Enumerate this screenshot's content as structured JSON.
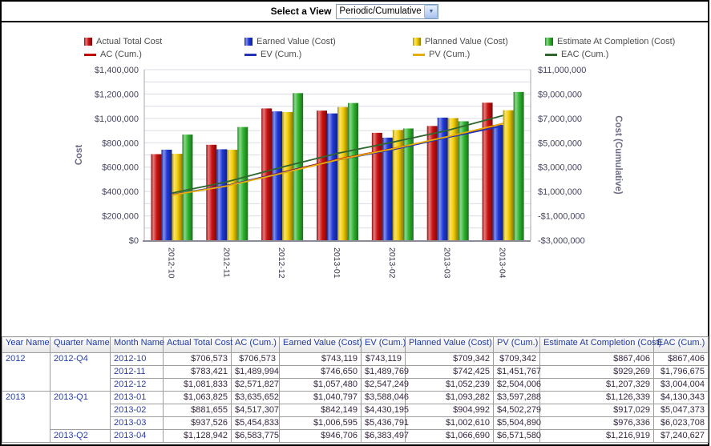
{
  "view_selector": {
    "label": "Select a View",
    "value": "Periodic/Cumulative"
  },
  "chart_data": {
    "type": "bar",
    "subtype": "grouped-bars-with-cumulative-lines",
    "categories": [
      "2012-10",
      "2012-11",
      "2012-12",
      "2013-01",
      "2013-02",
      "2013-03",
      "2013-04"
    ],
    "bar_series": [
      {
        "name": "Actual Total Cost",
        "color": "#cc1111",
        "values": [
          706573,
          783421,
          1081833,
          1063825,
          881655,
          937526,
          1128942
        ]
      },
      {
        "name": "Earned Value (Cost)",
        "color": "#2038d8",
        "values": [
          743119,
          746650,
          1057480,
          1040797,
          842149,
          1006595,
          946706
        ]
      },
      {
        "name": "Planned Value (Cost)",
        "color": "#f2cc00",
        "values": [
          709342,
          742425,
          1052239,
          1093282,
          904992,
          1002610,
          1066690
        ]
      },
      {
        "name": "Estimate At Completion (Cost)",
        "color": "#2fb52f",
        "values": [
          867406,
          929269,
          1207329,
          1126339,
          917029,
          976336,
          1216919
        ]
      }
    ],
    "line_series": [
      {
        "name": "AC (Cum.)",
        "color": "#c40000",
        "values": [
          706573,
          1489994,
          2571827,
          3635652,
          4517307,
          5454833,
          6583775
        ]
      },
      {
        "name": "EV (Cum.)",
        "color": "#2233b8",
        "values": [
          743119,
          1489769,
          2547249,
          3588046,
          4430195,
          5436791,
          6383497
        ]
      },
      {
        "name": "PV (Cum.)",
        "color": "#e9ad00",
        "values": [
          709342,
          1451767,
          2504006,
          3597288,
          4502279,
          5504890,
          6571580
        ]
      },
      {
        "name": "EAC (Cum.)",
        "color": "#2e662e",
        "values": [
          867406,
          1796675,
          3004004,
          4130343,
          5047373,
          6023708,
          7240627
        ]
      }
    ],
    "left_axis": {
      "title": "Cost",
      "min": 0,
      "max": 1400000,
      "tick_step": 200000,
      "tick_labels": [
        "$0",
        "$200,000",
        "$400,000",
        "$600,000",
        "$800,000",
        "$1,000,000",
        "$1,200,000",
        "$1,400,000"
      ]
    },
    "right_axis": {
      "title": "Cost (Cumulative)",
      "min": -3000000,
      "max": 11000000,
      "tick_step": 2000000,
      "tick_labels": [
        "-$3,000,000",
        "-$1,000,000",
        "$1,000,000",
        "$3,000,000",
        "$5,000,000",
        "$7,000,000",
        "$9,000,000",
        "$11,000,000"
      ]
    },
    "grid": "horizontal-minor-100k",
    "legend_position": "top"
  },
  "table": {
    "headers": [
      "Year Name",
      "Quarter Name",
      "Month Name",
      "Actual Total Cost",
      "AC (Cum.)",
      "Earned Value (Cost)",
      "EV (Cum.)",
      "Planned Value (Cost)",
      "PV (Cum.)",
      "Estimate At Completion (Cost)",
      "EAC (Cum.)"
    ],
    "rows": [
      {
        "cells": [
          {
            "t": "2012",
            "span": 3,
            "k": "dim"
          },
          {
            "t": "2012-Q4",
            "span": 3,
            "k": "dim"
          },
          {
            "t": "2012-10",
            "k": "dim"
          },
          {
            "t": "$706,573"
          },
          {
            "t": "$706,573"
          },
          {
            "t": "$743,119"
          },
          {
            "t": "$743,119"
          },
          {
            "t": "$709,342"
          },
          {
            "t": "$709,342"
          },
          {
            "t": "$867,406"
          },
          {
            "t": "$867,406"
          }
        ]
      },
      {
        "cells": [
          {
            "t": "2012-11",
            "k": "dim"
          },
          {
            "t": "$783,421"
          },
          {
            "t": "$1,489,994"
          },
          {
            "t": "$746,650"
          },
          {
            "t": "$1,489,769"
          },
          {
            "t": "$742,425"
          },
          {
            "t": "$1,451,767"
          },
          {
            "t": "$929,269"
          },
          {
            "t": "$1,796,675"
          }
        ]
      },
      {
        "cells": [
          {
            "t": "2012-12",
            "k": "dim"
          },
          {
            "t": "$1,081,833"
          },
          {
            "t": "$2,571,827"
          },
          {
            "t": "$1,057,480"
          },
          {
            "t": "$2,547,249"
          },
          {
            "t": "$1,052,239"
          },
          {
            "t": "$2,504,006"
          },
          {
            "t": "$1,207,329"
          },
          {
            "t": "$3,004,004"
          }
        ]
      },
      {
        "cells": [
          {
            "t": "2013",
            "span": 4,
            "k": "dim"
          },
          {
            "t": "2013-Q1",
            "span": 3,
            "k": "dim"
          },
          {
            "t": "2013-01",
            "k": "dim"
          },
          {
            "t": "$1,063,825"
          },
          {
            "t": "$3,635,652"
          },
          {
            "t": "$1,040,797"
          },
          {
            "t": "$3,588,046"
          },
          {
            "t": "$1,093,282"
          },
          {
            "t": "$3,597,288"
          },
          {
            "t": "$1,126,339"
          },
          {
            "t": "$4,130,343"
          }
        ]
      },
      {
        "cells": [
          {
            "t": "2013-02",
            "k": "dim"
          },
          {
            "t": "$881,655"
          },
          {
            "t": "$4,517,307"
          },
          {
            "t": "$842,149"
          },
          {
            "t": "$4,430,195"
          },
          {
            "t": "$904,992"
          },
          {
            "t": "$4,502,279"
          },
          {
            "t": "$917,029"
          },
          {
            "t": "$5,047,373"
          }
        ]
      },
      {
        "cells": [
          {
            "t": "2013-03",
            "k": "dim"
          },
          {
            "t": "$937,526"
          },
          {
            "t": "$5,454,833"
          },
          {
            "t": "$1,006,595"
          },
          {
            "t": "$5,436,791"
          },
          {
            "t": "$1,002,610"
          },
          {
            "t": "$5,504,890"
          },
          {
            "t": "$976,336"
          },
          {
            "t": "$6,023,708"
          }
        ]
      },
      {
        "cells": [
          {
            "t": "2013-Q2",
            "span": 1,
            "k": "dim"
          },
          {
            "t": "2013-04",
            "k": "dim"
          },
          {
            "t": "$1,128,942"
          },
          {
            "t": "$6,583,775"
          },
          {
            "t": "$946,706"
          },
          {
            "t": "$6,383,497"
          },
          {
            "t": "$1,066,690"
          },
          {
            "t": "$6,571,580"
          },
          {
            "t": "$1,216,919"
          },
          {
            "t": "$7,240,627"
          }
        ]
      }
    ]
  }
}
